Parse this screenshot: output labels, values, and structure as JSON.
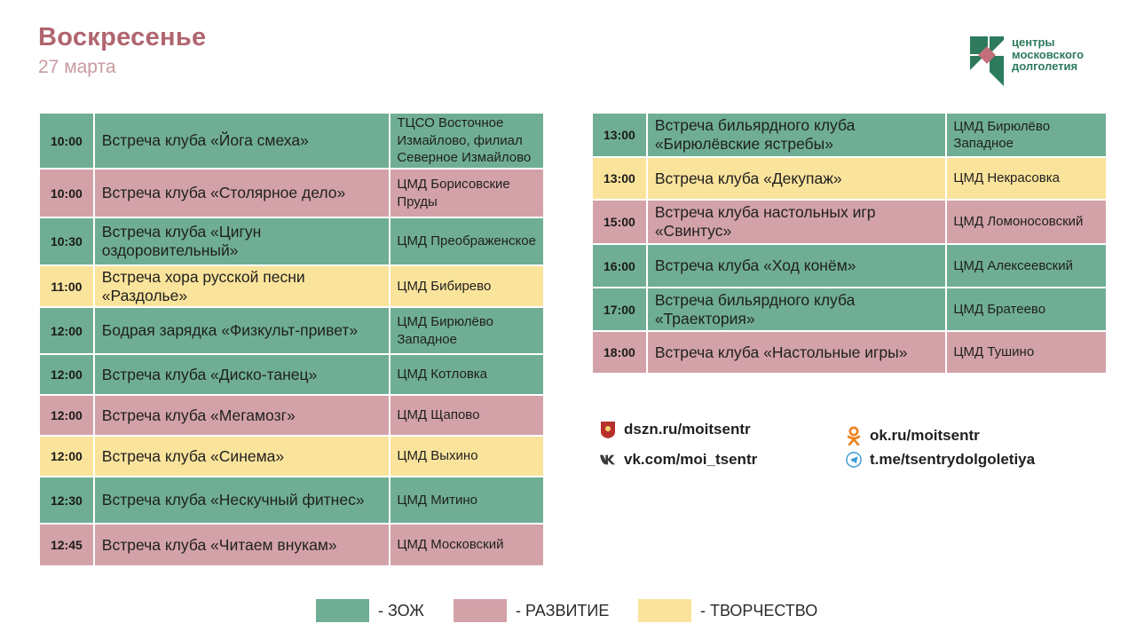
{
  "header": {
    "title": "Воскресенье",
    "date": "27 марта"
  },
  "logo": {
    "lines": [
      "центры",
      "московского",
      "долголетия"
    ]
  },
  "colors": {
    "zoj": "#6fae95",
    "razvitie": "#d3a2a9",
    "tvorchestvo": "#fae39b",
    "title": "#b0656f"
  },
  "left_schedule": [
    {
      "time": "10:00",
      "event": "Встреча клуба «Йога смеха»",
      "location": "ТЦСО Восточное Измайлово, филиал Северное Измайлово",
      "category": "zoj"
    },
    {
      "time": "10:00",
      "event": "Встреча клуба «Столярное дело»",
      "location": "ЦМД Борисовские Пруды",
      "category": "raz"
    },
    {
      "time": "10:30",
      "event": "Встреча клуба «Цигун оздоровительный»",
      "location": "ЦМД Преображенское",
      "category": "zoj"
    },
    {
      "time": "11:00",
      "event": "Встреча хора русской песни «Раздолье»",
      "location": "ЦМД Бибирево",
      "category": "tvo"
    },
    {
      "time": "12:00",
      "event": "Бодрая зарядка «Физкульт-привет»",
      "location": "ЦМД Бирюлёво Западное",
      "category": "zoj"
    },
    {
      "time": "12:00",
      "event": "Встреча клуба «Диско-танец»",
      "location": "ЦМД Котловка",
      "category": "zoj"
    },
    {
      "time": "12:00",
      "event": "Встреча клуба «Мегамозг»",
      "location": "ЦМД Щапово",
      "category": "raz"
    },
    {
      "time": "12:00",
      "event": "Встреча клуба «Синема»",
      "location": "ЦМД Выхино",
      "category": "tvo"
    },
    {
      "time": "12:30",
      "event": "Встреча клуба «Нескучный фитнес»",
      "location": "ЦМД Митино",
      "category": "zoj"
    },
    {
      "time": "12:45",
      "event": "Встреча клуба «Читаем внукам»",
      "location": "ЦМД Московский",
      "category": "raz"
    }
  ],
  "right_schedule": [
    {
      "time": "13:00",
      "event": "Встреча бильярдного клуба «Бирюлёвские ястребы»",
      "location": "ЦМД Бирюлёво Западное",
      "category": "zoj"
    },
    {
      "time": "13:00",
      "event": "Встреча клуба «Декупаж»",
      "location": "ЦМД Некрасовка",
      "category": "tvo"
    },
    {
      "time": "15:00",
      "event": "Встреча клуба настольных игр «Свинтус»",
      "location": "ЦМД Ломоносовский",
      "category": "raz"
    },
    {
      "time": "16:00",
      "event": "Встреча клуба «Ход конём»",
      "location": "ЦМД Алексеевский",
      "category": "zoj"
    },
    {
      "time": "17:00",
      "event": "Встреча бильярдного клуба «Траектория»",
      "location": "ЦМД Братеево",
      "category": "zoj"
    },
    {
      "time": "18:00",
      "event": "Встреча клуба «Настольные игры»",
      "location": "ЦМД Тушино",
      "category": "raz"
    }
  ],
  "links": {
    "dszn": {
      "text": "dszn.ru/moitsentr",
      "icon": "moscow-emblem-icon"
    },
    "vk": {
      "text": "vk.com/moi_tsentr",
      "icon": "vk-icon"
    },
    "ok": {
      "text": "ok.ru/moitsentr",
      "icon": "odnoklassniki-icon"
    },
    "tg": {
      "text": "t.me/tsentrydolgoletiya",
      "icon": "telegram-icon"
    }
  },
  "legend": [
    {
      "label": "- ЗОЖ",
      "category": "zoj"
    },
    {
      "label": "- РАЗВИТИЕ",
      "category": "raz"
    },
    {
      "label": "- ТВОРЧЕСТВО",
      "category": "tvo"
    }
  ]
}
